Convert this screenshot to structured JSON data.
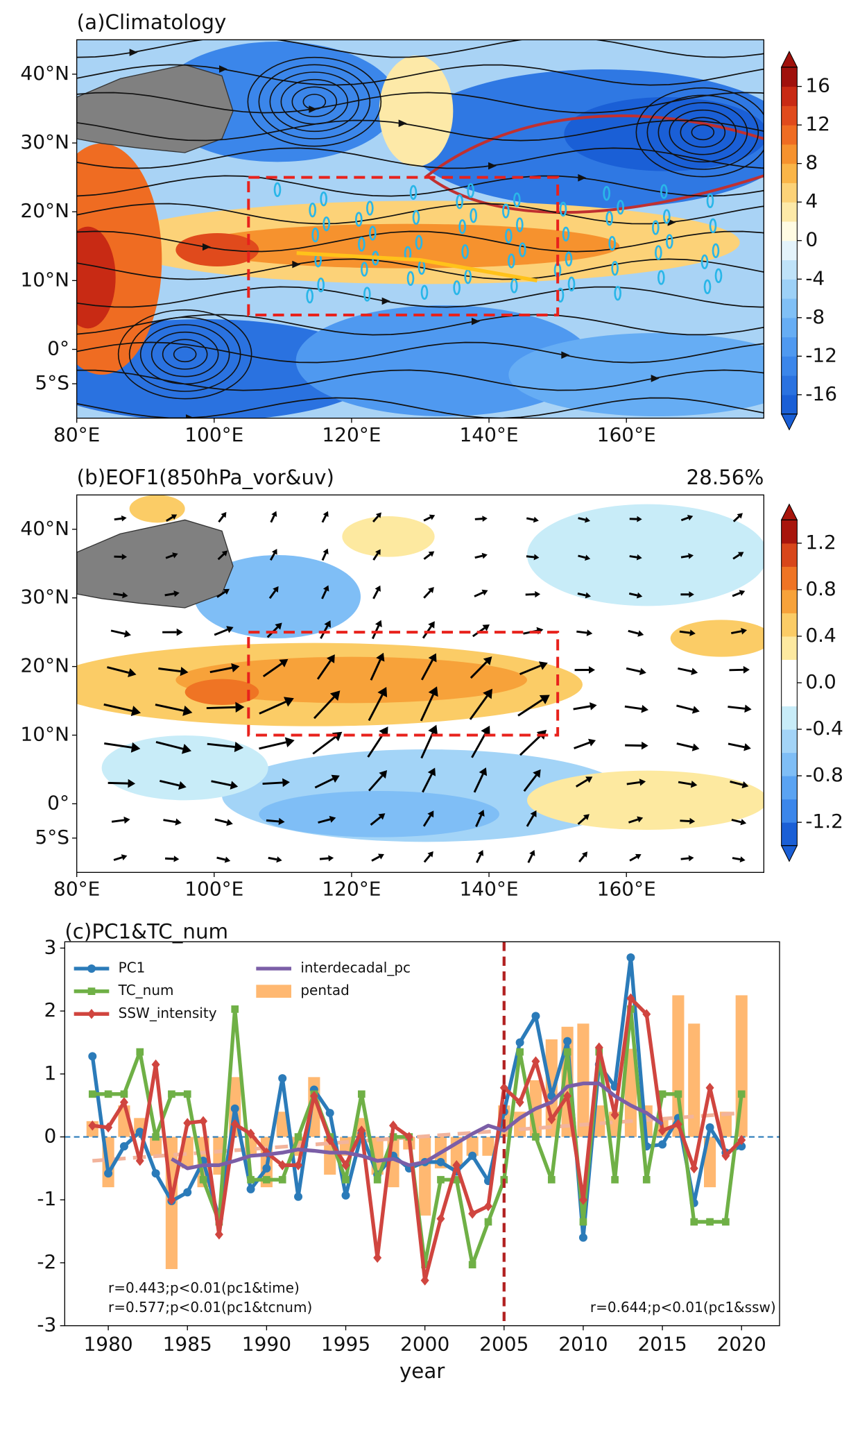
{
  "chart_data": [
    {
      "type": "map",
      "title": "(a)Climatology",
      "xlim": [
        80,
        180
      ],
      "ylim": [
        -10,
        45
      ],
      "xticks": [
        {
          "value": 80,
          "label": "80°E"
        },
        {
          "value": 100,
          "label": "100°E"
        },
        {
          "value": 120,
          "label": "120°E"
        },
        {
          "value": 140,
          "label": "140°E"
        },
        {
          "value": 160,
          "label": "160°E"
        }
      ],
      "yticks": [
        {
          "value": 40,
          "label": "40°N"
        },
        {
          "value": 30,
          "label": "30°N"
        },
        {
          "value": 20,
          "label": "20°N"
        },
        {
          "value": 10,
          "label": "10°N"
        },
        {
          "value": 0,
          "label": "0°"
        },
        {
          "value": -5,
          "label": "5°S"
        }
      ],
      "colorbar": {
        "clim": [
          -18,
          18
        ],
        "ticks": [
          16,
          12,
          8,
          4,
          0,
          -4,
          -8,
          -12,
          -16
        ],
        "colors": [
          "#1a5fd6",
          "#2a72e0",
          "#3b86ea",
          "#4f99f0",
          "#66adf4",
          "#80c0f6",
          "#9dd1f7",
          "#bfe2f8",
          "#e4f3fb",
          "#fffbe3",
          "#fde9a8",
          "#fcd278",
          "#fab548",
          "#f6922e",
          "#ef6c22",
          "#e04a1c",
          "#c82a14",
          "#a0110c"
        ]
      },
      "box": {
        "lon": [
          105,
          150
        ],
        "lat": [
          5,
          25
        ],
        "color": "#e8221c"
      },
      "track": {
        "lon": [
          112,
          130,
          147
        ],
        "lat": [
          14,
          13,
          10
        ],
        "color": "#ffc21a"
      }
    },
    {
      "type": "map",
      "title": "(b)EOF1(850hPa_vor&uv)",
      "subtitle": "28.56%",
      "xlim": [
        80,
        180
      ],
      "ylim": [
        -10,
        45
      ],
      "xticks": [
        {
          "value": 80,
          "label": "80°E"
        },
        {
          "value": 100,
          "label": "100°E"
        },
        {
          "value": 120,
          "label": "120°E"
        },
        {
          "value": 140,
          "label": "140°E"
        },
        {
          "value": 160,
          "label": "160°E"
        }
      ],
      "yticks": [
        {
          "value": 40,
          "label": "40°N"
        },
        {
          "value": 30,
          "label": "30°N"
        },
        {
          "value": 20,
          "label": "20°N"
        },
        {
          "value": 10,
          "label": "10°N"
        },
        {
          "value": 0,
          "label": "0°"
        },
        {
          "value": -5,
          "label": "5°S"
        }
      ],
      "colorbar": {
        "clim": [
          -1.4,
          1.4
        ],
        "ticks": [
          1.2,
          0.8,
          0.4,
          {
            "value": 0,
            "label": "0.0"
          },
          -0.4,
          -0.8,
          -1.2
        ],
        "colors": [
          "#1a5fd6",
          "#3b86ea",
          "#5aa3f2",
          "#7fbef6",
          "#a3d4f7",
          "#c8ecf8",
          "#ffffff",
          "#ffffff",
          "#fde9a0",
          "#fbcc66",
          "#f7a23a",
          "#ef7424",
          "#d8461a",
          "#a8150c"
        ]
      },
      "box": {
        "lon": [
          105,
          150
        ],
        "lat": [
          10,
          25
        ],
        "color": "#e8221c"
      }
    },
    {
      "type": "line",
      "title": "(c)PC1&TC_num",
      "xlabel": "year",
      "x": [
        1979,
        1980,
        1981,
        1982,
        1983,
        1984,
        1985,
        1986,
        1987,
        1988,
        1989,
        1990,
        1991,
        1992,
        1993,
        1994,
        1995,
        1996,
        1997,
        1998,
        1999,
        2000,
        2001,
        2002,
        2003,
        2004,
        2005,
        2006,
        2007,
        2008,
        2009,
        2010,
        2011,
        2012,
        2013,
        2014,
        2015,
        2016,
        2017,
        2018,
        2019,
        2020
      ],
      "xlim": [
        1977.25,
        2022.4
      ],
      "ylim": [
        -3,
        3.1
      ],
      "xticks": [
        1980,
        1985,
        1990,
        1995,
        2000,
        2005,
        2010,
        2015,
        2020
      ],
      "yticks": [
        -3,
        -2,
        -1,
        0,
        1,
        2,
        3
      ],
      "legend": "upper left",
      "series": [
        {
          "name": "PC1",
          "color": "#2b7bb9",
          "marker": "circle",
          "values": [
            1.28,
            -0.58,
            -0.15,
            0.08,
            -0.58,
            -1.02,
            -0.88,
            -0.38,
            -1.3,
            0.45,
            -0.83,
            -0.5,
            0.93,
            -0.95,
            0.75,
            0.38,
            -0.93,
            0.05,
            -0.6,
            -0.3,
            -0.5,
            -0.4,
            -0.4,
            -0.55,
            -0.3,
            -0.7,
            0.4,
            1.5,
            1.92,
            0.65,
            1.52,
            -1.6,
            1.15,
            0.8,
            2.85,
            -0.15,
            -0.12,
            0.3,
            -1.05,
            0.15,
            -0.25,
            -0.15
          ]
        },
        {
          "name": "TC_num",
          "color": "#6fb046",
          "marker": "square",
          "values": [
            0.68,
            0.68,
            0.68,
            1.35,
            0.0,
            0.68,
            0.68,
            -0.68,
            -1.35,
            2.03,
            -0.68,
            -0.68,
            -0.68,
            0.0,
            0.68,
            0.0,
            -0.68,
            0.68,
            -0.68,
            0.0,
            0.0,
            -2.03,
            -0.68,
            -0.68,
            -2.03,
            -1.35,
            -0.68,
            1.35,
            0.0,
            -0.68,
            1.35,
            -1.35,
            1.35,
            -0.68,
            2.03,
            -0.68,
            0.68,
            0.68,
            -1.35,
            -1.35,
            -1.35,
            0.68
          ]
        },
        {
          "name": "SSW_intensity",
          "color": "#d0453f",
          "marker": "diamond",
          "values": [
            0.18,
            0.15,
            0.55,
            -0.38,
            1.15,
            -1.0,
            0.22,
            0.25,
            -1.55,
            0.2,
            0.05,
            -0.25,
            -0.45,
            -0.45,
            0.65,
            -0.05,
            -0.45,
            0.1,
            -1.92,
            0.18,
            0.0,
            -2.28,
            -1.3,
            -0.45,
            -1.22,
            -1.1,
            0.78,
            0.55,
            1.2,
            0.28,
            0.65,
            -1.0,
            1.42,
            0.35,
            2.2,
            1.95,
            0.1,
            0.2,
            -0.5,
            0.78,
            -0.3,
            -0.05
          ]
        },
        {
          "name": "interdecadal_pc",
          "color": "#7b5ea7",
          "values": [
            null,
            null,
            null,
            null,
            null,
            -0.35,
            -0.5,
            -0.45,
            -0.45,
            -0.38,
            -0.3,
            -0.28,
            -0.25,
            -0.2,
            -0.22,
            -0.25,
            -0.25,
            -0.3,
            -0.38,
            -0.35,
            -0.45,
            -0.4,
            -0.25,
            -0.1,
            0.05,
            0.18,
            0.1,
            0.3,
            0.45,
            0.55,
            0.8,
            0.85,
            0.85,
            0.65,
            0.5,
            0.38,
            0.2,
            null,
            null,
            null,
            null,
            null
          ]
        },
        {
          "name": "pentad",
          "type": "bar",
          "color": "#ffa64d",
          "values": [
            0.25,
            -0.8,
            0.5,
            0.3,
            -0.3,
            -2.1,
            -0.5,
            -0.8,
            -0.6,
            0.95,
            -0.3,
            -0.8,
            0.4,
            -0.3,
            0.95,
            -0.6,
            -0.3,
            0.3,
            -0.6,
            -0.8,
            -0.2,
            -1.25,
            -0.5,
            -0.5,
            -0.3,
            -0.3,
            0.5,
            0.4,
            0.9,
            1.55,
            1.75,
            1.8,
            0.5,
            0.4,
            1.4,
            0.5,
            0.3,
            2.25,
            1.8,
            -0.8,
            0.4,
            2.25
          ]
        }
      ],
      "trend": {
        "x": [
          1979,
          2020
        ],
        "values": [
          -0.38,
          0.38
        ],
        "color": "#f2b49c"
      },
      "vline": {
        "x": 2005,
        "color": "#b22222"
      },
      "hline": {
        "y": 0,
        "color": "#2b7bb9"
      },
      "annotations": [
        "r=0.443;p<0.01(pc1&time)",
        "r=0.577;p<0.01(pc1&tcnum)",
        "r=0.644;p<0.01(pc1&ssw)"
      ]
    }
  ]
}
